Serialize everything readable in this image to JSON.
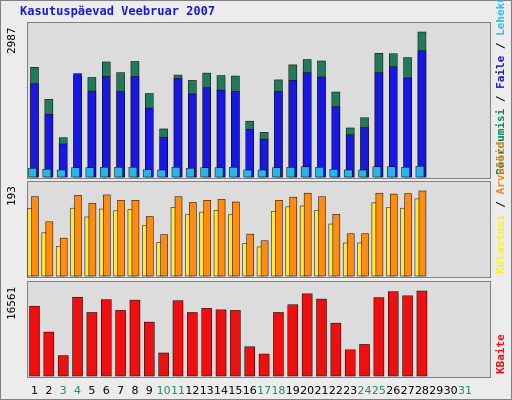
{
  "title": "Kasutuspäevad Veebruar 2007",
  "chart_data": {
    "type": "bar",
    "categories": [
      "1",
      "2",
      "3",
      "4",
      "5",
      "6",
      "7",
      "8",
      "9",
      "10",
      "11",
      "12",
      "13",
      "14",
      "15",
      "16",
      "17",
      "18",
      "19",
      "20",
      "21",
      "22",
      "23",
      "24",
      "25",
      "26",
      "27",
      "28",
      "29",
      "30",
      "31"
    ],
    "weekend_days": [
      "3",
      "4",
      "10",
      "11",
      "17",
      "18",
      "24",
      "25",
      "31"
    ],
    "panels": [
      {
        "ymax_label": "2987",
        "ymax": 2987,
        "right_label_parts": [
          {
            "text": "Pöördumisi",
            "color": "#0a8a5a"
          },
          {
            "text": " / ",
            "color": "#000000"
          },
          {
            "text": "Faile",
            "color": "#1a1ac8"
          },
          {
            "text": " / ",
            "color": "#000000"
          },
          {
            "text": "Lehekülgi",
            "color": "#33bbee"
          }
        ],
        "series": [
          {
            "name": "Pöördumisi",
            "color": "#237a5a",
            "values": [
              2260,
              1600,
              810,
              2080,
              2050,
              2370,
              2150,
              2380,
              1720,
              990,
              2100,
              1990,
              2140,
              2090,
              2080,
              1150,
              920,
              2000,
              2310,
              2420,
              2390,
              1750,
              1010,
              1220,
              2550,
              2540,
              2460,
              2987,
              null,
              null,
              null
            ]
          },
          {
            "name": "Faile",
            "color": "#1818e0",
            "values": [
              1920,
              1290,
              680,
              2130,
              1770,
              2070,
              1760,
              2070,
              1420,
              820,
              2030,
              1710,
              1840,
              1790,
              1760,
              980,
              780,
              1760,
              1990,
              2150,
              2060,
              1450,
              870,
              1020,
              2150,
              2270,
              2040,
              2600,
              null,
              null,
              null
            ]
          },
          {
            "name": "Lehekülgi",
            "color": "#29b5e8",
            "values": [
              180,
              160,
              110,
              190,
              190,
              200,
              200,
              200,
              150,
              120,
              200,
              180,
              190,
              190,
              200,
              120,
              90,
              190,
              200,
              210,
              200,
              160,
              100,
              120,
              210,
              210,
              200,
              220,
              null,
              null,
              null
            ]
          }
        ]
      },
      {
        "ymax_label": "193",
        "ymax": 193,
        "right_label_parts": [
          {
            "text": "Külastusi",
            "color": "#ffee22"
          },
          {
            "text": " / ",
            "color": "#000000"
          },
          {
            "text": "Arvuteid",
            "color": "#f08a1a"
          }
        ],
        "series": [
          {
            "name": "Külastusi",
            "color": "#ffe640",
            "values": [
              153,
              98,
              67,
              154,
              134,
              152,
              148,
              151,
              114,
              76,
              156,
              139,
              145,
              149,
              139,
              74,
              66,
              147,
              157,
              159,
              149,
              118,
              75,
              75,
              166,
              155,
              154,
              175,
              null,
              null,
              null
            ]
          },
          {
            "name": "Arvuteid",
            "color": "#ff8c10",
            "values": [
              180,
              123,
              86,
              183,
              165,
              184,
              172,
              172,
              135,
              94,
              180,
              167,
              172,
              174,
              168,
              95,
              80,
              172,
              179,
              188,
              180,
              140,
              96,
              96,
              188,
              186,
              187,
              193,
              null,
              null,
              null
            ]
          }
        ]
      },
      {
        "ymax_label": "16561",
        "ymax": 16561,
        "right_label_parts": [
          {
            "text": "KBaite",
            "color": "#ee1111"
          }
        ],
        "series": [
          {
            "name": "KBaite",
            "color": "#ee1010",
            "values": [
              13600,
              8560,
              3980,
              15350,
              12380,
              14880,
              12780,
              14780,
              10500,
              4480,
              14680,
              12380,
              13180,
              12880,
              12780,
              5690,
              4280,
              12380,
              13880,
              16000,
              14980,
              10300,
              5100,
              6150,
              15280,
              16440,
              15620,
              16561,
              null,
              null,
              null
            ]
          }
        ]
      }
    ]
  }
}
